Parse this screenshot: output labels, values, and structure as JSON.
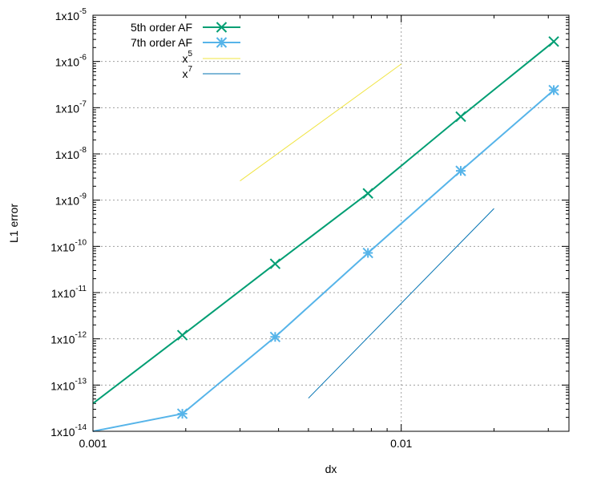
{
  "chart_data": {
    "type": "line",
    "xscale": "log",
    "yscale": "log",
    "xlim": [
      0.001,
      0.035
    ],
    "ylim": [
      1e-14,
      1e-05
    ],
    "grid": true,
    "xlabel": "dx",
    "ylabel": "L1 error",
    "xticks": [
      {
        "value": 0.001,
        "label": "0.001"
      },
      {
        "value": 0.01,
        "label": "0.01"
      }
    ],
    "yticks": [
      {
        "value": 1e-14,
        "base": "1x10",
        "exp": "-14"
      },
      {
        "value": 1e-13,
        "base": "1x10",
        "exp": "-13"
      },
      {
        "value": 1e-12,
        "base": "1x10",
        "exp": "-12"
      },
      {
        "value": 1e-11,
        "base": "1x10",
        "exp": "-11"
      },
      {
        "value": 1e-10,
        "base": "1x10",
        "exp": "-10"
      },
      {
        "value": 1e-09,
        "base": "1x10",
        "exp": "-9"
      },
      {
        "value": 1e-08,
        "base": "1x10",
        "exp": "-8"
      },
      {
        "value": 1e-07,
        "base": "1x10",
        "exp": "-7"
      },
      {
        "value": 1e-06,
        "base": "1x10",
        "exp": "-6"
      },
      {
        "value": 1e-05,
        "base": "1x10",
        "exp": "-5"
      }
    ],
    "legend_position": "top-left",
    "series": [
      {
        "name": "5th order AF",
        "color": "#009e73",
        "marker": "x",
        "x": [
          0.001,
          0.00195,
          0.0039,
          0.0078,
          0.0156,
          0.03125
        ],
        "y": [
          4e-14,
          1.2e-12,
          4.2e-11,
          1.4e-09,
          6.4e-08,
          2.7e-06
        ]
      },
      {
        "name": "7th order AF",
        "color": "#56b4e9",
        "marker": "asterisk",
        "x": [
          0.001,
          0.00195,
          0.0039,
          0.0078,
          0.0156,
          0.03125
        ],
        "y": [
          1e-14,
          2.4e-14,
          1.1e-12,
          7.2e-11,
          4.3e-09,
          2.4e-07
        ]
      },
      {
        "name": "x",
        "name_sup": "5",
        "color": "#f0e442",
        "marker": "none",
        "x": [
          0.003,
          0.01
        ],
        "y": [
          2.6e-09,
          8.8e-07
        ]
      },
      {
        "name": "x",
        "name_sup": "7",
        "color": "#0072b2",
        "marker": "none",
        "x": [
          0.005,
          0.02
        ],
        "y": [
          5.2e-14,
          6.6e-10
        ]
      }
    ]
  }
}
